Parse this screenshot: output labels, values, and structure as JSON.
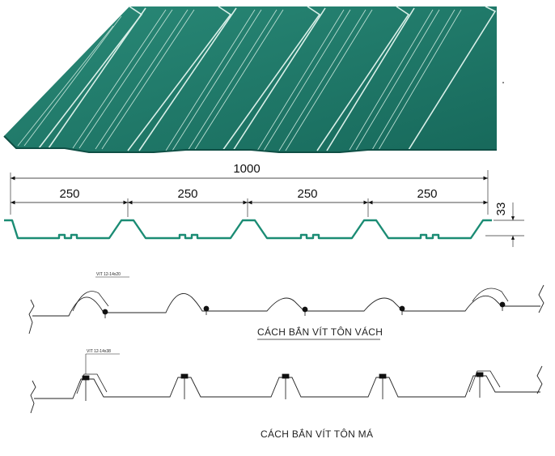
{
  "dimensions": {
    "overall": "1000",
    "pitches": [
      "250",
      "250",
      "250",
      "250"
    ],
    "height": "33"
  },
  "screw_notes": {
    "wall": "VIT 12-14x20",
    "roof": "VIT 12-14x38"
  },
  "captions": {
    "wall": "CÁCH BẮN VÍT TÔN VÁCH",
    "roof": "CÁCH BẮN VÍT TÔN MÁ"
  },
  "colors": {
    "sheet_green": "#1f7a6a",
    "sheet_dark": "#0f4f45",
    "profile_line": "#1b8c74",
    "line": "#222222"
  }
}
